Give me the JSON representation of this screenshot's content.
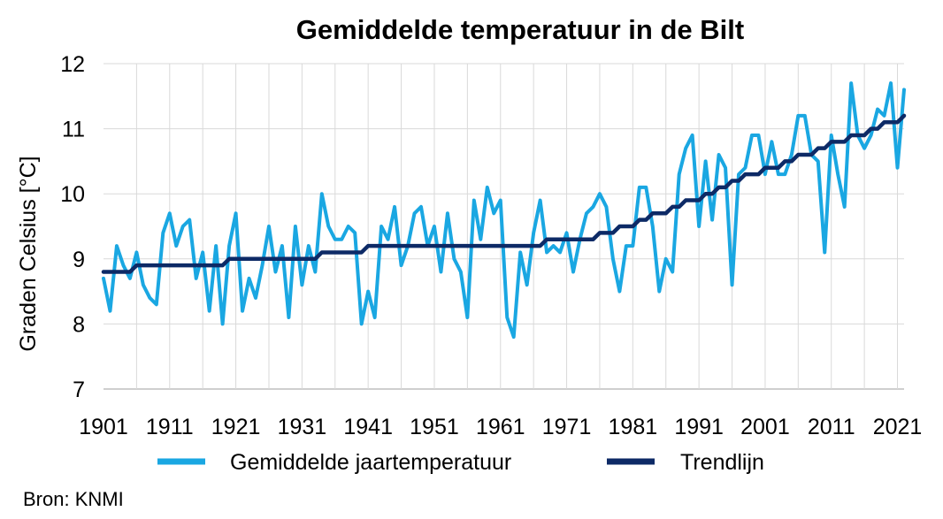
{
  "chart_data": {
    "type": "line",
    "title": "Gemiddelde temperatuur in de Bilt",
    "xlabel": "",
    "ylabel": "Graden Celsius [°C]",
    "xlim": [
      1901,
      2022
    ],
    "ylim": [
      7,
      12
    ],
    "x_ticks": [
      "1901",
      "1911",
      "1921",
      "1931",
      "1941",
      "1951",
      "1961",
      "1971",
      "1981",
      "1991",
      "2001",
      "2011",
      "2021"
    ],
    "y_ticks": [
      "7",
      "8",
      "9",
      "10",
      "11",
      "12"
    ],
    "grid": true,
    "legend": "bottom",
    "series": [
      {
        "name": "Gemiddelde jaartemperatuur",
        "color": "#1aa7e2",
        "x_start": 1901,
        "values": [
          8.7,
          8.2,
          9.2,
          8.9,
          8.7,
          9.1,
          8.6,
          8.4,
          8.3,
          9.4,
          9.7,
          9.2,
          9.5,
          9.6,
          8.7,
          9.1,
          8.2,
          9.2,
          8.0,
          9.2,
          9.7,
          8.2,
          8.7,
          8.4,
          8.9,
          9.5,
          8.8,
          9.2,
          8.1,
          9.5,
          8.6,
          9.2,
          8.8,
          10.0,
          9.5,
          9.3,
          9.3,
          9.5,
          9.4,
          8.0,
          8.5,
          8.1,
          9.5,
          9.3,
          9.8,
          8.9,
          9.2,
          9.7,
          9.8,
          9.2,
          9.5,
          8.8,
          9.7,
          9.0,
          8.8,
          8.1,
          9.9,
          9.3,
          10.1,
          9.7,
          9.9,
          8.1,
          7.8,
          9.1,
          8.6,
          9.4,
          9.9,
          9.1,
          9.2,
          9.1,
          9.4,
          8.8,
          9.3,
          9.7,
          9.8,
          10.0,
          9.8,
          9.0,
          8.5,
          9.2,
          9.2,
          10.1,
          10.1,
          9.5,
          8.5,
          9.0,
          8.8,
          10.3,
          10.7,
          10.9,
          9.5,
          10.5,
          9.6,
          10.6,
          10.4,
          8.6,
          10.3,
          10.4,
          10.9,
          10.9,
          10.3,
          10.8,
          10.3,
          10.3,
          10.6,
          11.2,
          11.2,
          10.6,
          10.5,
          9.1,
          10.9,
          10.3,
          9.8,
          11.7,
          10.9,
          10.7,
          10.9,
          11.3,
          11.2,
          11.7,
          10.4,
          11.6
        ]
      },
      {
        "name": "Trendlijn",
        "color": "#0d2a66",
        "x_start": 1901,
        "values": [
          8.8,
          8.8,
          8.8,
          8.8,
          8.8,
          8.9,
          8.9,
          8.9,
          8.9,
          8.9,
          8.9,
          8.9,
          8.9,
          8.9,
          8.9,
          8.9,
          8.9,
          8.9,
          8.9,
          9.0,
          9.0,
          9.0,
          9.0,
          9.0,
          9.0,
          9.0,
          9.0,
          9.0,
          9.0,
          9.0,
          9.0,
          9.0,
          9.0,
          9.1,
          9.1,
          9.1,
          9.1,
          9.1,
          9.1,
          9.1,
          9.2,
          9.2,
          9.2,
          9.2,
          9.2,
          9.2,
          9.2,
          9.2,
          9.2,
          9.2,
          9.2,
          9.2,
          9.2,
          9.2,
          9.2,
          9.2,
          9.2,
          9.2,
          9.2,
          9.2,
          9.2,
          9.2,
          9.2,
          9.2,
          9.2,
          9.2,
          9.2,
          9.3,
          9.3,
          9.3,
          9.3,
          9.3,
          9.3,
          9.3,
          9.3,
          9.4,
          9.4,
          9.4,
          9.5,
          9.5,
          9.5,
          9.6,
          9.6,
          9.7,
          9.7,
          9.7,
          9.8,
          9.8,
          9.9,
          9.9,
          9.9,
          10.0,
          10.0,
          10.1,
          10.1,
          10.2,
          10.2,
          10.3,
          10.3,
          10.3,
          10.4,
          10.4,
          10.4,
          10.5,
          10.5,
          10.6,
          10.6,
          10.6,
          10.7,
          10.7,
          10.8,
          10.8,
          10.8,
          10.9,
          10.9,
          10.9,
          11.0,
          11.0,
          11.1,
          11.1,
          11.1,
          11.2
        ]
      }
    ]
  },
  "source": "Bron: KNMI"
}
